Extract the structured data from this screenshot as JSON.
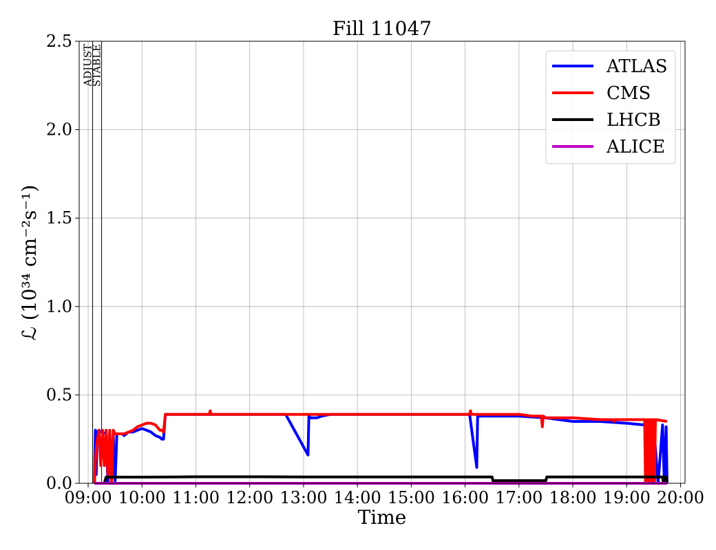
{
  "chart_data": {
    "type": "line",
    "title": "Fill 11047",
    "xlabel": "Time",
    "ylabel": "ℒ (10³⁴ cm⁻²s⁻¹)",
    "xlim": [
      "09:00",
      "20:00"
    ],
    "ylim": [
      0,
      2.5
    ],
    "x_ticks": [
      "09:00",
      "10:00",
      "11:00",
      "12:00",
      "13:00",
      "14:00",
      "15:00",
      "16:00",
      "17:00",
      "18:00",
      "19:00",
      "20:00"
    ],
    "y_ticks": [
      "0.0",
      "0.5",
      "1.0",
      "1.5",
      "2.0",
      "2.5"
    ],
    "grid": true,
    "legend_position": "top-right",
    "markers": [
      {
        "label": "ADJUST",
        "time": "09:05"
      },
      {
        "label": "STABLE",
        "time": "09:15"
      }
    ],
    "series": [
      {
        "name": "ATLAS",
        "color": "#0000ff",
        "x": [
          "09:07",
          "09:08",
          "09:09",
          "09:10",
          "09:12",
          "09:15",
          "09:20",
          "09:22",
          "09:24",
          "09:26",
          "09:28",
          "09:30",
          "09:32",
          "09:35",
          "09:38",
          "09:40",
          "09:45",
          "09:50",
          "09:55",
          "10:00",
          "10:05",
          "10:10",
          "10:15",
          "10:20",
          "10:22",
          "10:24",
          "10:26",
          "10:30",
          "10:35",
          "10:40",
          "11:00",
          "12:00",
          "12:40",
          "13:05",
          "13:06",
          "13:07",
          "13:15",
          "13:20",
          "13:30",
          "14:00",
          "14:30",
          "15:00",
          "15:30",
          "16:00",
          "16:05",
          "16:13",
          "16:14",
          "16:15",
          "16:30",
          "17:00",
          "17:30",
          "18:00",
          "18:30",
          "19:00",
          "19:20",
          "19:25",
          "19:30",
          "19:35",
          "19:40",
          "19:42",
          "19:44",
          "19:45"
        ],
        "y": [
          0.0,
          0.3,
          0.05,
          0.29,
          0.3,
          0.29,
          0.28,
          0.0,
          0.28,
          0.0,
          0.28,
          0.0,
          0.28,
          0.28,
          0.28,
          0.27,
          0.29,
          0.29,
          0.3,
          0.31,
          0.3,
          0.29,
          0.27,
          0.26,
          0.25,
          0.25,
          0.39,
          0.39,
          0.39,
          0.39,
          0.39,
          0.39,
          0.39,
          0.16,
          0.39,
          0.37,
          0.37,
          0.38,
          0.39,
          0.39,
          0.39,
          0.39,
          0.39,
          0.39,
          0.39,
          0.09,
          0.39,
          0.38,
          0.38,
          0.38,
          0.37,
          0.35,
          0.35,
          0.34,
          0.33,
          0.33,
          0.33,
          0.0,
          0.33,
          0.0,
          0.32,
          0.0
        ]
      },
      {
        "name": "CMS",
        "color": "#ff0000",
        "x": [
          "09:07",
          "09:08",
          "09:09",
          "09:10",
          "09:12",
          "09:14",
          "09:16",
          "09:18",
          "09:20",
          "09:22",
          "09:24",
          "09:26",
          "09:28",
          "09:30",
          "09:35",
          "09:40",
          "09:45",
          "09:50",
          "09:55",
          "10:00",
          "10:05",
          "10:10",
          "10:15",
          "10:20",
          "10:22",
          "10:24",
          "10:26",
          "10:30",
          "11:00",
          "11:15",
          "11:16",
          "11:17",
          "12:00",
          "13:00",
          "14:00",
          "15:00",
          "16:00",
          "16:05",
          "16:06",
          "16:07",
          "16:30",
          "17:00",
          "17:15",
          "17:25",
          "17:26",
          "17:27",
          "17:30",
          "17:45",
          "18:00",
          "18:30",
          "18:45",
          "18:46",
          "18:47",
          "19:00",
          "19:15",
          "19:20",
          "19:21",
          "19:22",
          "19:23",
          "19:24",
          "19:25",
          "19:26",
          "19:27",
          "19:28",
          "19:29",
          "19:30",
          "19:31",
          "19:32",
          "19:33",
          "19:45"
        ],
        "y": [
          0.0,
          0.12,
          0.2,
          0.24,
          0.3,
          0.1,
          0.3,
          0.1,
          0.3,
          0.05,
          0.3,
          0.0,
          0.3,
          0.28,
          0.28,
          0.28,
          0.29,
          0.3,
          0.32,
          0.33,
          0.34,
          0.34,
          0.33,
          0.3,
          0.3,
          0.29,
          0.39,
          0.39,
          0.39,
          0.39,
          0.41,
          0.39,
          0.39,
          0.39,
          0.39,
          0.39,
          0.39,
          0.39,
          0.41,
          0.39,
          0.39,
          0.39,
          0.38,
          0.38,
          0.32,
          0.38,
          0.37,
          0.37,
          0.37,
          0.36,
          0.36,
          0.35,
          0.36,
          0.36,
          0.36,
          0.36,
          0.0,
          0.36,
          0.0,
          0.36,
          0.0,
          0.36,
          0.0,
          0.36,
          0.0,
          0.36,
          0.0,
          0.36,
          0.36,
          0.35
        ]
      },
      {
        "name": "LHCB",
        "color": "#000000",
        "x": [
          "09:07",
          "09:10",
          "09:15",
          "09:18",
          "09:20",
          "09:30",
          "10:00",
          "11:00",
          "12:00",
          "13:00",
          "14:00",
          "15:00",
          "16:00",
          "16:30",
          "16:31",
          "17:00",
          "17:30",
          "17:31",
          "18:00",
          "19:00",
          "19:40",
          "19:41",
          "19:42",
          "19:43",
          "19:44",
          "19:45"
        ],
        "y": [
          0.0,
          0.0,
          0.0,
          0.0,
          0.035,
          0.035,
          0.035,
          0.037,
          0.037,
          0.036,
          0.036,
          0.036,
          0.036,
          0.036,
          0.015,
          0.015,
          0.015,
          0.036,
          0.036,
          0.036,
          0.036,
          0.0,
          0.036,
          0.0,
          0.036,
          0.0
        ]
      },
      {
        "name": "ALICE",
        "color": "#bf00bf",
        "x": [
          "09:07",
          "10:00",
          "12:00",
          "14:00",
          "16:00",
          "18:00",
          "19:45"
        ],
        "y": [
          0.0,
          0.0,
          0.0,
          0.0,
          0.0,
          0.0,
          0.0
        ]
      }
    ]
  }
}
